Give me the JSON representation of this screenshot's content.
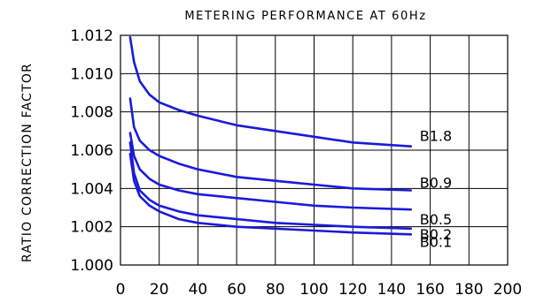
{
  "chart_data": {
    "type": "line",
    "title": "METERING PERFORMANCE AT 60Hz",
    "xlabel": "",
    "ylabel": "RATIO CORRECTION FACTOR",
    "xlim": [
      0,
      200
    ],
    "ylim": [
      1.0,
      1.012
    ],
    "xticks": [
      "0",
      "20",
      "40",
      "60",
      "80",
      "100",
      "120",
      "140",
      "160",
      "180",
      "200"
    ],
    "yticks": [
      "1.000",
      "1.002",
      "1.004",
      "1.006",
      "1.008",
      "1.010",
      "1.012"
    ],
    "grid": true,
    "series_color": "#1a1adb",
    "series": [
      {
        "name": "B1.8",
        "x": [
          5,
          7,
          10,
          15,
          20,
          30,
          40,
          60,
          80,
          100,
          120,
          150
        ],
        "y": [
          1.0119,
          1.0106,
          1.0096,
          1.0089,
          1.0085,
          1.0081,
          1.0078,
          1.0073,
          1.007,
          1.0067,
          1.0064,
          1.0062
        ]
      },
      {
        "name": "B0.9",
        "x": [
          5,
          7,
          10,
          15,
          20,
          30,
          40,
          60,
          80,
          100,
          120,
          150
        ],
        "y": [
          1.0087,
          1.0072,
          1.0065,
          1.006,
          1.0057,
          1.0053,
          1.005,
          1.0046,
          1.0044,
          1.0042,
          1.004,
          1.0039
        ]
      },
      {
        "name": "B0.5",
        "x": [
          5,
          7,
          10,
          15,
          20,
          30,
          40,
          60,
          80,
          100,
          120,
          150
        ],
        "y": [
          1.0069,
          1.0057,
          1.005,
          1.0045,
          1.0042,
          1.0039,
          1.0037,
          1.0035,
          1.0033,
          1.0031,
          1.003,
          1.0029
        ]
      },
      {
        "name": "B0.2",
        "x": [
          5,
          7,
          10,
          15,
          20,
          30,
          40,
          60,
          80,
          100,
          120,
          150
        ],
        "y": [
          1.0064,
          1.0048,
          1.0039,
          1.0034,
          1.0031,
          1.0028,
          1.0026,
          1.0024,
          1.0022,
          1.0021,
          1.002,
          1.0019
        ]
      },
      {
        "name": "B0.1",
        "x": [
          5,
          7,
          10,
          15,
          20,
          30,
          40,
          60,
          80,
          100,
          120,
          150
        ],
        "y": [
          1.0058,
          1.0044,
          1.0036,
          1.0031,
          1.0028,
          1.0024,
          1.0022,
          1.002,
          1.0019,
          1.0018,
          1.0017,
          1.0016
        ]
      }
    ]
  }
}
